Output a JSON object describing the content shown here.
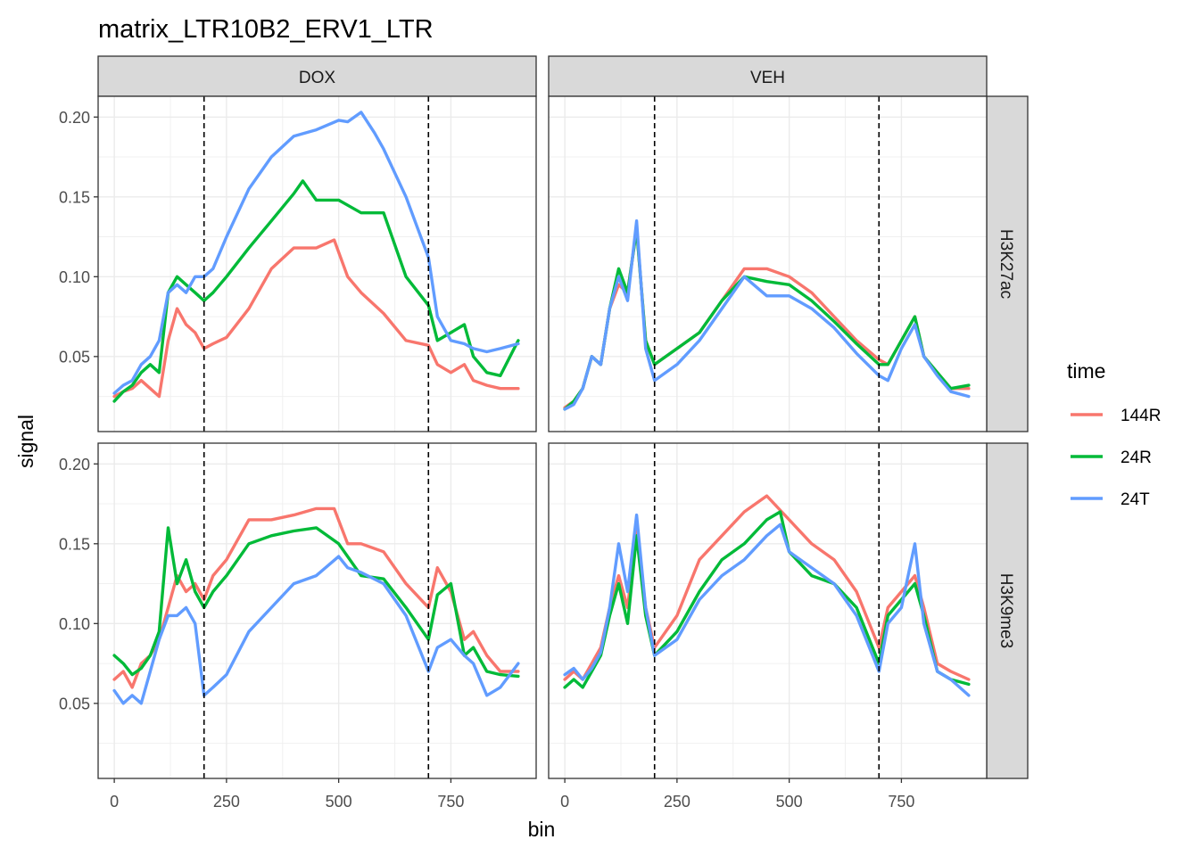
{
  "chart_data": {
    "type": "line",
    "title": "matrix_LTR10B2_ERV1_LTR",
    "xlabel": "bin",
    "ylabel": "signal",
    "xlim": [
      -36,
      940
    ],
    "ylim": [
      0.003,
      0.213
    ],
    "x_ticks": [
      0,
      250,
      500,
      750
    ],
    "x_tick_labels": [
      "0",
      "250",
      "500",
      "750"
    ],
    "y_ticks": [
      0.05,
      0.1,
      0.15,
      0.2
    ],
    "y_tick_labels": [
      "0.05",
      "0.10",
      "0.15",
      "0.20"
    ],
    "vlines": [
      200,
      700
    ],
    "grid": true,
    "col_facets": [
      "DOX",
      "VEH"
    ],
    "row_facets": [
      "H3K27ac",
      "H3K9me3"
    ],
    "legend": {
      "title": "time",
      "position": "right",
      "entries": [
        {
          "label": "144R",
          "color": "#F8766D"
        },
        {
          "label": "24R",
          "color": "#00BA38"
        },
        {
          "label": "24T",
          "color": "#619CFF"
        }
      ]
    },
    "panels": [
      {
        "col": "DOX",
        "row": "H3K27ac",
        "series": [
          {
            "name": "144R",
            "color": "#F8766D",
            "x": [
              0,
              20,
              40,
              60,
              80,
              100,
              120,
              140,
              160,
              180,
              200,
              220,
              250,
              300,
              350,
              400,
              450,
              490,
              520,
              550,
              600,
              650,
              700,
              720,
              750,
              780,
              800,
              830,
              860,
              900
            ],
            "values": [
              0.025,
              0.028,
              0.03,
              0.035,
              0.03,
              0.025,
              0.06,
              0.08,
              0.07,
              0.065,
              0.055,
              0.058,
              0.062,
              0.08,
              0.105,
              0.118,
              0.118,
              0.123,
              0.1,
              0.09,
              0.077,
              0.06,
              0.057,
              0.045,
              0.04,
              0.045,
              0.035,
              0.032,
              0.03,
              0.03
            ]
          },
          {
            "name": "24R",
            "color": "#00BA38",
            "x": [
              0,
              20,
              40,
              60,
              80,
              100,
              120,
              140,
              160,
              180,
              200,
              220,
              250,
              300,
              350,
              400,
              420,
              450,
              500,
              550,
              600,
              650,
              700,
              720,
              750,
              780,
              800,
              830,
              860,
              900
            ],
            "values": [
              0.022,
              0.028,
              0.032,
              0.04,
              0.045,
              0.04,
              0.09,
              0.1,
              0.095,
              0.09,
              0.085,
              0.09,
              0.1,
              0.118,
              0.135,
              0.152,
              0.16,
              0.148,
              0.148,
              0.14,
              0.14,
              0.1,
              0.082,
              0.06,
              0.065,
              0.07,
              0.05,
              0.04,
              0.038,
              0.06
            ]
          },
          {
            "name": "24T",
            "color": "#619CFF",
            "x": [
              0,
              20,
              40,
              60,
              80,
              100,
              120,
              140,
              160,
              180,
              200,
              220,
              250,
              300,
              350,
              400,
              450,
              500,
              520,
              550,
              580,
              600,
              650,
              700,
              720,
              750,
              780,
              800,
              830,
              860,
              900
            ],
            "values": [
              0.027,
              0.032,
              0.035,
              0.045,
              0.05,
              0.06,
              0.09,
              0.095,
              0.09,
              0.1,
              0.1,
              0.105,
              0.125,
              0.155,
              0.175,
              0.188,
              0.192,
              0.198,
              0.197,
              0.203,
              0.19,
              0.18,
              0.15,
              0.112,
              0.075,
              0.06,
              0.058,
              0.055,
              0.053,
              0.055,
              0.058
            ]
          }
        ]
      },
      {
        "col": "VEH",
        "row": "H3K27ac",
        "series": [
          {
            "name": "144R",
            "color": "#F8766D",
            "x": [
              0,
              20,
              40,
              60,
              80,
              100,
              120,
              140,
              160,
              180,
              200,
              250,
              300,
              350,
              400,
              450,
              500,
              550,
              600,
              650,
              700,
              720,
              750,
              780,
              800,
              830,
              860,
              900
            ],
            "values": [
              0.018,
              0.022,
              0.03,
              0.05,
              0.045,
              0.08,
              0.095,
              0.09,
              0.13,
              0.06,
              0.045,
              0.055,
              0.065,
              0.085,
              0.105,
              0.105,
              0.1,
              0.09,
              0.075,
              0.06,
              0.048,
              0.045,
              0.06,
              0.075,
              0.05,
              0.04,
              0.03,
              0.03
            ]
          },
          {
            "name": "24R",
            "color": "#00BA38",
            "x": [
              0,
              20,
              40,
              60,
              80,
              100,
              120,
              140,
              160,
              180,
              200,
              250,
              300,
              350,
              400,
              450,
              500,
              550,
              600,
              650,
              700,
              720,
              750,
              780,
              800,
              830,
              860,
              900
            ],
            "values": [
              0.017,
              0.022,
              0.03,
              0.05,
              0.045,
              0.08,
              0.105,
              0.09,
              0.13,
              0.06,
              0.045,
              0.055,
              0.065,
              0.085,
              0.1,
              0.097,
              0.095,
              0.085,
              0.072,
              0.058,
              0.045,
              0.045,
              0.06,
              0.075,
              0.05,
              0.04,
              0.03,
              0.032
            ]
          },
          {
            "name": "24T",
            "color": "#619CFF",
            "x": [
              0,
              20,
              40,
              60,
              80,
              100,
              120,
              140,
              160,
              180,
              200,
              250,
              300,
              350,
              400,
              450,
              500,
              550,
              600,
              650,
              700,
              720,
              750,
              780,
              800,
              830,
              860,
              900
            ],
            "values": [
              0.017,
              0.02,
              0.03,
              0.05,
              0.045,
              0.08,
              0.1,
              0.085,
              0.135,
              0.055,
              0.035,
              0.045,
              0.06,
              0.08,
              0.1,
              0.088,
              0.088,
              0.08,
              0.068,
              0.052,
              0.038,
              0.035,
              0.055,
              0.07,
              0.05,
              0.038,
              0.028,
              0.025
            ]
          }
        ]
      },
      {
        "col": "DOX",
        "row": "H3K9me3",
        "series": [
          {
            "name": "144R",
            "color": "#F8766D",
            "x": [
              0,
              20,
              40,
              60,
              80,
              100,
              120,
              140,
              160,
              180,
              200,
              220,
              250,
              300,
              350,
              400,
              450,
              490,
              520,
              550,
              600,
              650,
              700,
              720,
              750,
              780,
              800,
              830,
              860,
              900
            ],
            "values": [
              0.065,
              0.07,
              0.06,
              0.075,
              0.08,
              0.09,
              0.11,
              0.13,
              0.12,
              0.125,
              0.115,
              0.13,
              0.14,
              0.165,
              0.165,
              0.168,
              0.172,
              0.172,
              0.15,
              0.15,
              0.145,
              0.125,
              0.11,
              0.135,
              0.12,
              0.09,
              0.095,
              0.08,
              0.07,
              0.07
            ]
          },
          {
            "name": "24R",
            "color": "#00BA38",
            "x": [
              0,
              20,
              40,
              60,
              80,
              100,
              120,
              140,
              160,
              180,
              200,
              220,
              250,
              300,
              350,
              400,
              450,
              500,
              550,
              600,
              650,
              700,
              720,
              750,
              780,
              800,
              830,
              860,
              900
            ],
            "values": [
              0.08,
              0.075,
              0.068,
              0.072,
              0.08,
              0.095,
              0.16,
              0.125,
              0.14,
              0.12,
              0.11,
              0.12,
              0.13,
              0.15,
              0.155,
              0.158,
              0.16,
              0.15,
              0.13,
              0.128,
              0.11,
              0.09,
              0.118,
              0.125,
              0.08,
              0.085,
              0.07,
              0.068,
              0.067
            ]
          },
          {
            "name": "24T",
            "color": "#619CFF",
            "x": [
              0,
              20,
              40,
              60,
              80,
              100,
              120,
              140,
              160,
              180,
              200,
              220,
              250,
              300,
              350,
              400,
              450,
              500,
              520,
              550,
              600,
              650,
              700,
              720,
              750,
              780,
              800,
              830,
              860,
              900
            ],
            "values": [
              0.058,
              0.05,
              0.055,
              0.05,
              0.07,
              0.09,
              0.105,
              0.105,
              0.11,
              0.1,
              0.055,
              0.06,
              0.068,
              0.095,
              0.11,
              0.125,
              0.13,
              0.142,
              0.135,
              0.132,
              0.125,
              0.105,
              0.07,
              0.085,
              0.09,
              0.08,
              0.075,
              0.055,
              0.06,
              0.075
            ]
          }
        ]
      },
      {
        "col": "VEH",
        "row": "H3K9me3",
        "series": [
          {
            "name": "144R",
            "color": "#F8766D",
            "x": [
              0,
              20,
              40,
              60,
              80,
              100,
              120,
              140,
              160,
              180,
              200,
              250,
              300,
              350,
              400,
              450,
              500,
              550,
              600,
              650,
              700,
              720,
              750,
              780,
              800,
              830,
              860,
              900
            ],
            "values": [
              0.065,
              0.07,
              0.065,
              0.075,
              0.085,
              0.11,
              0.13,
              0.11,
              0.16,
              0.11,
              0.085,
              0.105,
              0.14,
              0.155,
              0.17,
              0.18,
              0.165,
              0.15,
              0.14,
              0.12,
              0.085,
              0.11,
              0.12,
              0.13,
              0.11,
              0.075,
              0.07,
              0.065
            ]
          },
          {
            "name": "24R",
            "color": "#00BA38",
            "x": [
              0,
              20,
              40,
              60,
              80,
              100,
              120,
              140,
              160,
              180,
              200,
              250,
              300,
              350,
              400,
              450,
              480,
              500,
              550,
              600,
              650,
              700,
              720,
              750,
              780,
              800,
              830,
              860,
              900
            ],
            "values": [
              0.06,
              0.065,
              0.06,
              0.07,
              0.08,
              0.105,
              0.125,
              0.1,
              0.155,
              0.105,
              0.08,
              0.095,
              0.12,
              0.14,
              0.15,
              0.165,
              0.17,
              0.145,
              0.13,
              0.125,
              0.11,
              0.075,
              0.105,
              0.115,
              0.125,
              0.105,
              0.07,
              0.065,
              0.062
            ]
          },
          {
            "name": "24T",
            "color": "#619CFF",
            "x": [
              0,
              20,
              40,
              60,
              80,
              100,
              120,
              140,
              160,
              180,
              200,
              250,
              300,
              350,
              400,
              450,
              480,
              500,
              550,
              600,
              650,
              700,
              720,
              750,
              780,
              800,
              830,
              860,
              900
            ],
            "values": [
              0.068,
              0.072,
              0.065,
              0.072,
              0.082,
              0.11,
              0.15,
              0.12,
              0.168,
              0.11,
              0.08,
              0.09,
              0.115,
              0.13,
              0.14,
              0.155,
              0.162,
              0.145,
              0.135,
              0.125,
              0.105,
              0.07,
              0.1,
              0.11,
              0.15,
              0.1,
              0.07,
              0.065,
              0.055
            ]
          }
        ]
      }
    ]
  }
}
